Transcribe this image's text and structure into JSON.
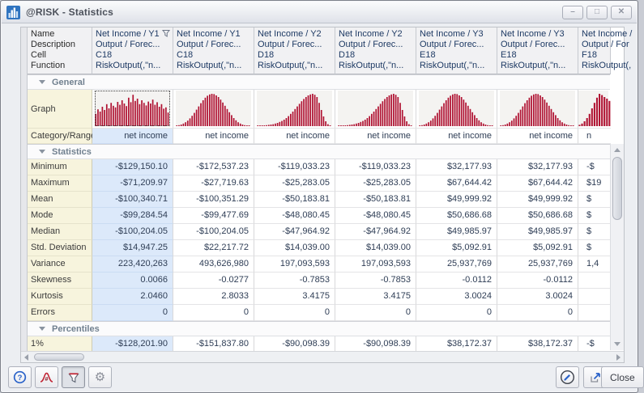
{
  "window": {
    "title": "@RISK - Statistics",
    "controls": [
      {
        "name": "minimize",
        "glyph": "–"
      },
      {
        "name": "maximize",
        "glyph": "□"
      },
      {
        "name": "close",
        "glyph": "✕"
      }
    ]
  },
  "grid": {
    "header_labels": [
      "Name",
      "Description",
      "Cell",
      "Function"
    ],
    "columns": [
      {
        "name": "Net Income / Y1",
        "description": "Output / Forec...",
        "cell": "C18",
        "function": "RiskOutput(,\"n...",
        "category": "net income",
        "histogram": "plateau",
        "selected": true,
        "has_filter_icon": true
      },
      {
        "name": "Net Income / Y1",
        "description": "Output / Forec...",
        "cell": "C18",
        "function": "RiskOutput(,\"n...",
        "category": "net income",
        "histogram": "bell"
      },
      {
        "name": "Net Income / Y2",
        "description": "Output / Forec...",
        "cell": "D18",
        "function": "RiskOutput(,\"n...",
        "category": "net income",
        "histogram": "leftskew"
      },
      {
        "name": "Net Income / Y2",
        "description": "Output / Forec...",
        "cell": "D18",
        "function": "RiskOutput(,\"n...",
        "category": "net income",
        "histogram": "leftskew"
      },
      {
        "name": "Net Income / Y3",
        "description": "Output / Forec...",
        "cell": "E18",
        "function": "RiskOutput(,\"n...",
        "category": "net income",
        "histogram": "bell"
      },
      {
        "name": "Net Income / Y3",
        "description": "Output / Forec...",
        "cell": "E18",
        "function": "RiskOutput(,\"n...",
        "category": "net income",
        "histogram": "bell"
      },
      {
        "name": "Net Income /",
        "description": "Output / For",
        "cell": "F18",
        "function": "RiskOutput(,",
        "category": "n",
        "histogram": "partialbell",
        "partial": true
      }
    ],
    "sections": {
      "general": {
        "title": "General",
        "graph_label": "Graph",
        "category_label": "Category/Range"
      },
      "statistics": {
        "title": "Statistics",
        "rows": [
          {
            "label": "Minimum",
            "values": [
              "-$129,150.10",
              "-$172,537.23",
              "-$119,033.23",
              "-$119,033.23",
              "$32,177.93",
              "$32,177.93",
              "-$"
            ]
          },
          {
            "label": "Maximum",
            "values": [
              "-$71,209.97",
              "-$27,719.63",
              "-$25,283.05",
              "-$25,283.05",
              "$67,644.42",
              "$67,644.42",
              "$19"
            ]
          },
          {
            "label": "Mean",
            "values": [
              "-$100,340.71",
              "-$100,351.29",
              "-$50,183.81",
              "-$50,183.81",
              "$49,999.92",
              "$49,999.92",
              "$"
            ]
          },
          {
            "label": "Mode",
            "values": [
              "-$99,284.54",
              "-$99,477.69",
              "-$48,080.45",
              "-$48,080.45",
              "$50,686.68",
              "$50,686.68",
              "$"
            ]
          },
          {
            "label": "Median",
            "values": [
              "-$100,204.05",
              "-$100,204.05",
              "-$47,964.92",
              "-$47,964.92",
              "$49,985.97",
              "$49,985.97",
              "$"
            ]
          },
          {
            "label": "Std. Deviation",
            "values": [
              "$14,947.25",
              "$22,217.72",
              "$14,039.00",
              "$14,039.00",
              "$5,092.91",
              "$5,092.91",
              "$"
            ]
          },
          {
            "label": "Variance",
            "values": [
              "223,420,263",
              "493,626,980",
              "197,093,593",
              "197,093,593",
              "25,937,769",
              "25,937,769",
              "1,4"
            ]
          },
          {
            "label": "Skewness",
            "values": [
              "0.0066",
              "-0.0277",
              "-0.7853",
              "-0.7853",
              "-0.0112",
              "-0.0112",
              ""
            ]
          },
          {
            "label": "Kurtosis",
            "values": [
              "2.0460",
              "2.8033",
              "3.4175",
              "3.4175",
              "3.0024",
              "3.0024",
              ""
            ]
          },
          {
            "label": "Errors",
            "values": [
              "0",
              "0",
              "0",
              "0",
              "0",
              "0",
              ""
            ]
          }
        ]
      },
      "percentiles": {
        "title": "Percentiles",
        "rows": [
          {
            "label": "1%",
            "values": [
              "-$128,201.90",
              "-$151,837.80",
              "-$90,098.39",
              "-$90,098.39",
              "$38,172.37",
              "$38,172.37",
              "-$"
            ]
          }
        ]
      }
    },
    "histograms": {
      "plateau": [
        0.38,
        0.52,
        0.45,
        0.6,
        0.5,
        0.68,
        0.55,
        0.72,
        0.63,
        0.58,
        0.75,
        0.66,
        0.8,
        0.7,
        0.62,
        0.88,
        0.74,
        0.97,
        0.78,
        0.85,
        0.68,
        0.8,
        0.72,
        0.64,
        0.76,
        0.7,
        0.82,
        0.66,
        0.74,
        0.6,
        0.68,
        0.54,
        0.58,
        0.42
      ],
      "bell": [
        0.02,
        0.03,
        0.05,
        0.08,
        0.12,
        0.17,
        0.24,
        0.32,
        0.41,
        0.51,
        0.61,
        0.71,
        0.8,
        0.88,
        0.94,
        0.98,
        1.0,
        0.99,
        0.95,
        0.9,
        0.82,
        0.73,
        0.63,
        0.53,
        0.43,
        0.34,
        0.25,
        0.18,
        0.12,
        0.08,
        0.05,
        0.03,
        0.02,
        0.01
      ],
      "leftskew": [
        0.01,
        0.01,
        0.02,
        0.02,
        0.03,
        0.04,
        0.05,
        0.06,
        0.08,
        0.1,
        0.13,
        0.16,
        0.2,
        0.25,
        0.31,
        0.38,
        0.45,
        0.53,
        0.61,
        0.69,
        0.77,
        0.84,
        0.9,
        0.95,
        0.98,
        1.0,
        0.97,
        0.9,
        0.72,
        0.5,
        0.3,
        0.15,
        0.06,
        0.02
      ],
      "partialbell": [
        0.04,
        0.08,
        0.15,
        0.25,
        0.38,
        0.55,
        0.72,
        0.88,
        1.0,
        0.96,
        0.9,
        0.85,
        0.78
      ]
    },
    "bar_color": "#b01232",
    "selected_color": "#dce9fa",
    "label_color": "#f7f4dd"
  },
  "toolbar": {
    "left_buttons": [
      {
        "label": "help",
        "icon": "help-icon"
      },
      {
        "label": "distribution-format",
        "icon": "distribution-icon"
      },
      {
        "label": "filter",
        "icon": "filter-icon",
        "active": true
      },
      {
        "label": "settings",
        "icon": "gear-icon",
        "glyph": "⚙"
      }
    ],
    "right_buttons": [
      {
        "label": "edit",
        "icon": "pen-circle-icon"
      },
      {
        "label": "export",
        "icon": "export-icon"
      }
    ],
    "close_label": "Close"
  }
}
